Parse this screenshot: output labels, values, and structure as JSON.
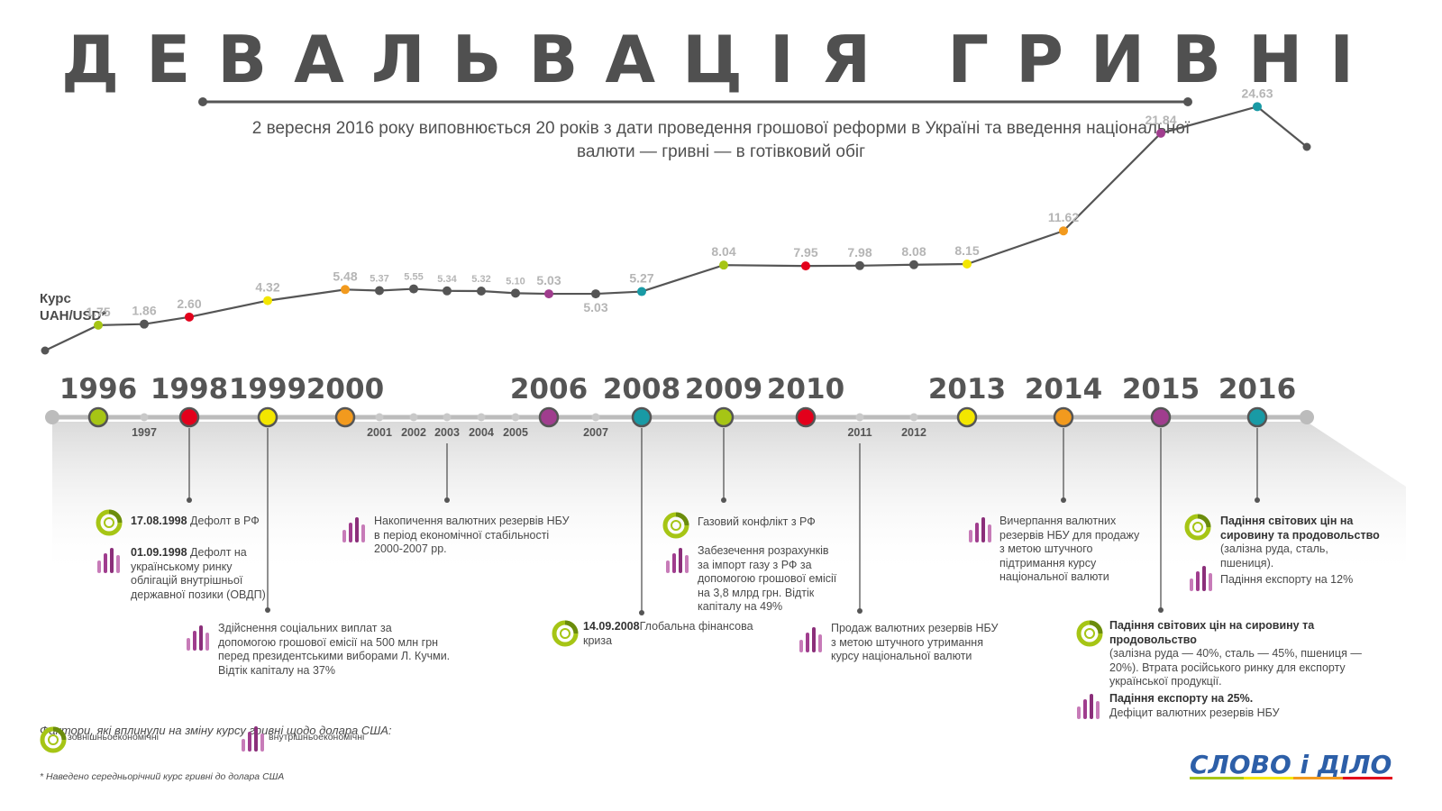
{
  "title": "ДЕВАЛЬВАЦІЯ ГРИВНІ",
  "subtitle": "2 вересня 2016 року виповнюється 20 років з дати проведення грошової реформи в Україні та введення національної валюти — гривні — в готівковий обіг",
  "chart_data": {
    "type": "line",
    "ylabel": "Курс UAH/USD*",
    "x": [
      "1996",
      "1997",
      "1998",
      "1999",
      "2000",
      "2001",
      "2002",
      "2003",
      "2004",
      "2005",
      "2006",
      "2007",
      "2008",
      "2009",
      "2010",
      "2011",
      "2012",
      "2013",
      "2014",
      "2015",
      "2016"
    ],
    "series": [
      {
        "values": [
          1.75,
          1.86,
          2.6,
          4.32,
          5.48,
          5.37,
          5.55,
          5.34,
          5.32,
          5.1,
          5.03,
          5.03,
          5.27,
          8.04,
          7.95,
          7.98,
          8.08,
          8.15,
          11.62,
          21.84,
          24.63
        ]
      }
    ],
    "value_labels": [
      "1.75",
      "1.86",
      "2.60",
      "4.32",
      "5.48",
      "5.37",
      "5.55",
      "5.34",
      "5.32",
      "5.10",
      "5.03",
      "5.03",
      "5.27",
      "8.04",
      "7.95",
      "7.98",
      "8.08",
      "8.15",
      "11.62",
      "21.84",
      "24.63"
    ],
    "highlighted_years": [
      "1996",
      "1998",
      "1999",
      "2000",
      "2006",
      "2008",
      "2009",
      "2010",
      "2013",
      "2014",
      "2015",
      "2016"
    ],
    "point_colors": {
      "1996": "#a6c515",
      "1998": "#e3001b",
      "1999": "#f3e600",
      "2000": "#f29a1e",
      "2006": "#a03d8e",
      "2008": "#199aa5",
      "2009": "#a6c515",
      "2010": "#e3001b",
      "2013": "#f3e600",
      "2014": "#f29a1e",
      "2015": "#a03d8e",
      "2016": "#199aa5"
    }
  },
  "events": [
    {
      "year": "1998",
      "type": "external",
      "bold": "17.08.1998",
      "text": " Дефолт в РФ"
    },
    {
      "year": "1998",
      "type": "internal",
      "bold": "01.09.1998",
      "text": " Дефолт на українському ринку облігацій внутрішньої державної позики (ОВДП)"
    },
    {
      "year": "1999",
      "type": "internal",
      "bold": "",
      "text": "Здійснення соціальних виплат за допомогою грошової емісії на 500 млн грн перед президентськими виборами Л. Кучми. Відтік капіталу на 37%"
    },
    {
      "year": "2003",
      "type": "internal",
      "bold": "",
      "text": "Накопичення валютних резервів НБУ в період економічної стабільності 2000-2007 рр."
    },
    {
      "year": "2008",
      "type": "external",
      "bold": "14.09.2008",
      "text": "Глобальна фінансова криза"
    },
    {
      "year": "2009",
      "type": "external",
      "bold": "",
      "text": "Газовий конфлікт з РФ"
    },
    {
      "year": "2009",
      "type": "internal",
      "bold": "",
      "text": "Забезечення розрахунків за імпорт газу з РФ за допомогою грошової емісії на 3,8 млрд грн. Відтік капіталу на 49%"
    },
    {
      "year": "2011",
      "type": "internal",
      "bold": "",
      "text": "Продаж валютних резервів НБУ з метою штучного утримання курсу національної валюти"
    },
    {
      "year": "2014",
      "type": "internal",
      "bold": "",
      "text": "Вичерпання валютних резервів НБУ для продажу з метою штучного підтримання курсу національної валюти"
    },
    {
      "year": "2016",
      "type": "external",
      "bold": "Падіння світових цін на сировину та продовольство",
      "text": "(залізна руда, сталь, пшениця)."
    },
    {
      "year": "2016",
      "type": "internal",
      "bold": "",
      "text": "Падіння експорту на 12%"
    },
    {
      "year": "2015",
      "type": "external",
      "bold": "Падіння світових цін на сировину та продовольство",
      "text": "(залізна руда — 40%, сталь — 45%, пшениця — 20%). Втрата російського ринку для експорту української продукції."
    },
    {
      "year": "2015",
      "type": "internal",
      "bold": "Падіння експорту на 25%.",
      "text": "Дефіцит валютних резервів НБУ"
    }
  ],
  "legend": {
    "title": "Фактори, які вплинули на зміну курсу гривні щодо долара США:",
    "external": "зовнішньоекономічні",
    "internal": "внутрішньоекономічні"
  },
  "footnote": "* Наведено середньорічний курс гривні до долара США",
  "logo": "СЛОВО і ДІЛО",
  "colors": {
    "text": "#4a4a4a",
    "axis": "#bcbcbc",
    "line": "#555555",
    "labels": "#b5b5b5",
    "external": "#a6c515",
    "internal": "#8b2f7a"
  }
}
